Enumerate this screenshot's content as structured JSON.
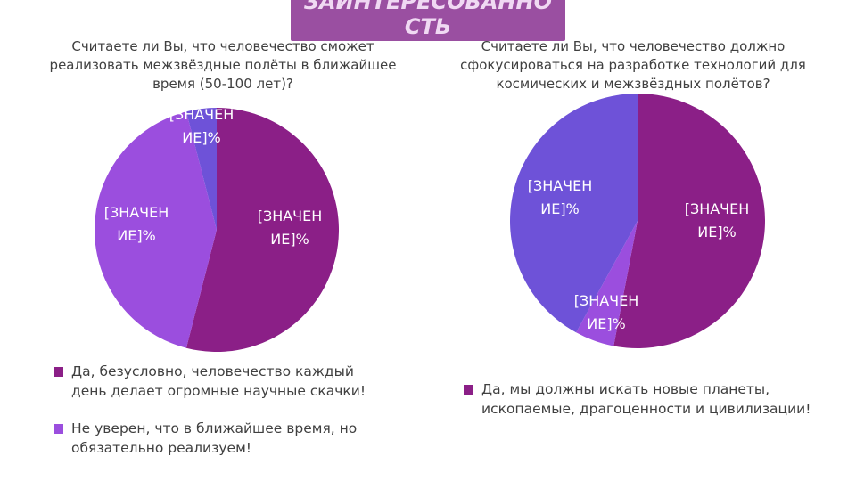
{
  "header": {
    "title": "ЗАИНТЕРЕСОВАННО СТЬ"
  },
  "colors": {
    "purple_dark": "#8b1f87",
    "violet": "#9b4ede",
    "blue_violet": "#6e52d8",
    "title_band": "#9a4fa1"
  },
  "chart_data": [
    {
      "type": "pie",
      "title": "Считаете ли Вы, что человечество сможет реализовать межзвёздные полёты в ближайшее время (50-100 лет)?",
      "slices": [
        {
          "label": "Да, безусловно, человечество каждый день делает огромные научные скачки!",
          "value": 54,
          "data_label": "[ЗНАЧЕН ИЕ]%",
          "color": "#8b1f87"
        },
        {
          "label": "Не уверен, что в ближайшее время, но обязательно реализуем!",
          "value": 42,
          "data_label": "[ЗНАЧЕН ИЕ]%",
          "color": "#9b4ede"
        },
        {
          "label": "",
          "value": 4,
          "data_label": "[ЗНАЧЕН ИЕ]%",
          "color": "#6e52d8"
        }
      ],
      "legend": "bottom"
    },
    {
      "type": "pie",
      "title": "Считаете ли Вы, что человечество должно сфокусироваться на разработке технологий для космических и межзвёздных полётов?",
      "slices": [
        {
          "label": "Да, мы должны искать новые планеты, ископаемые, драгоценности и цивилизации!",
          "value": 53,
          "data_label": "[ЗНАЧЕН ИЕ]%",
          "color": "#8b1f87"
        },
        {
          "label": "",
          "value": 5,
          "data_label": "[ЗНАЧЕН ИЕ]%",
          "color": "#9b4ede"
        },
        {
          "label": "",
          "value": 42,
          "data_label": "[ЗНАЧЕН ИЕ]%",
          "color": "#6e52d8"
        }
      ],
      "legend": "bottom"
    }
  ]
}
